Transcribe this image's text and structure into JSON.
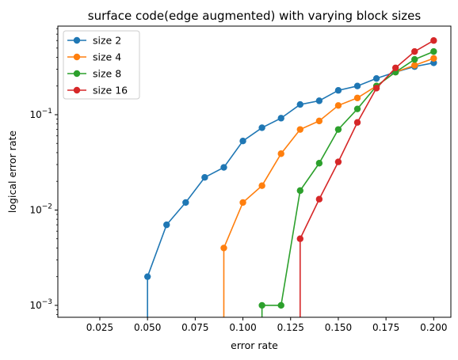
{
  "chart_data": {
    "type": "line",
    "title": "surface code(edge augmented) with varying block sizes",
    "xlabel": "error rate",
    "ylabel": "logical error rate",
    "yscale": "log",
    "xlim": [
      0.003,
      0.209
    ],
    "ylim": [
      0.00075,
      0.85
    ],
    "xticks": [
      0.025,
      0.05,
      0.075,
      0.1,
      0.125,
      0.15,
      0.175,
      0.2
    ],
    "xtick_labels": [
      "0.025",
      "0.050",
      "0.075",
      "0.100",
      "0.125",
      "0.150",
      "0.175",
      "0.200"
    ],
    "yticks": [
      {
        "value": 0.001,
        "base": "10",
        "exp": "−3"
      },
      {
        "value": 0.01,
        "base": "10",
        "exp": "−2"
      },
      {
        "value": 0.1,
        "base": "10",
        "exp": "−1"
      }
    ],
    "legend_position": "top-left",
    "grid": false,
    "x": [
      0.05,
      0.06,
      0.07,
      0.08,
      0.09,
      0.1,
      0.11,
      0.12,
      0.13,
      0.14,
      0.15,
      0.16,
      0.17,
      0.18,
      0.19,
      0.2
    ],
    "series": [
      {
        "name": "size 2",
        "color": "#1f77b4",
        "values": [
          0.002,
          0.007,
          0.012,
          0.022,
          0.028,
          0.053,
          0.073,
          0.092,
          0.128,
          0.14,
          0.18,
          0.2,
          0.24,
          0.28,
          0.32,
          0.35
        ]
      },
      {
        "name": "size 4",
        "color": "#ff7f0e",
        "values": [
          0,
          0,
          0,
          0,
          0.004,
          0.012,
          0.018,
          0.039,
          0.07,
          0.086,
          0.125,
          0.15,
          0.2,
          0.28,
          0.33,
          0.39
        ]
      },
      {
        "name": "size 8",
        "color": "#2ca02c",
        "values": [
          0,
          0,
          0,
          0,
          0,
          0,
          0.001,
          0.001,
          0.016,
          0.031,
          0.07,
          0.115,
          0.2,
          0.28,
          0.38,
          0.46
        ]
      },
      {
        "name": "size 16",
        "color": "#d62728",
        "values": [
          0,
          0,
          0,
          0,
          0,
          0,
          0,
          0,
          0.005,
          0.013,
          0.032,
          0.083,
          0.19,
          0.31,
          0.46,
          0.6
        ]
      }
    ]
  }
}
